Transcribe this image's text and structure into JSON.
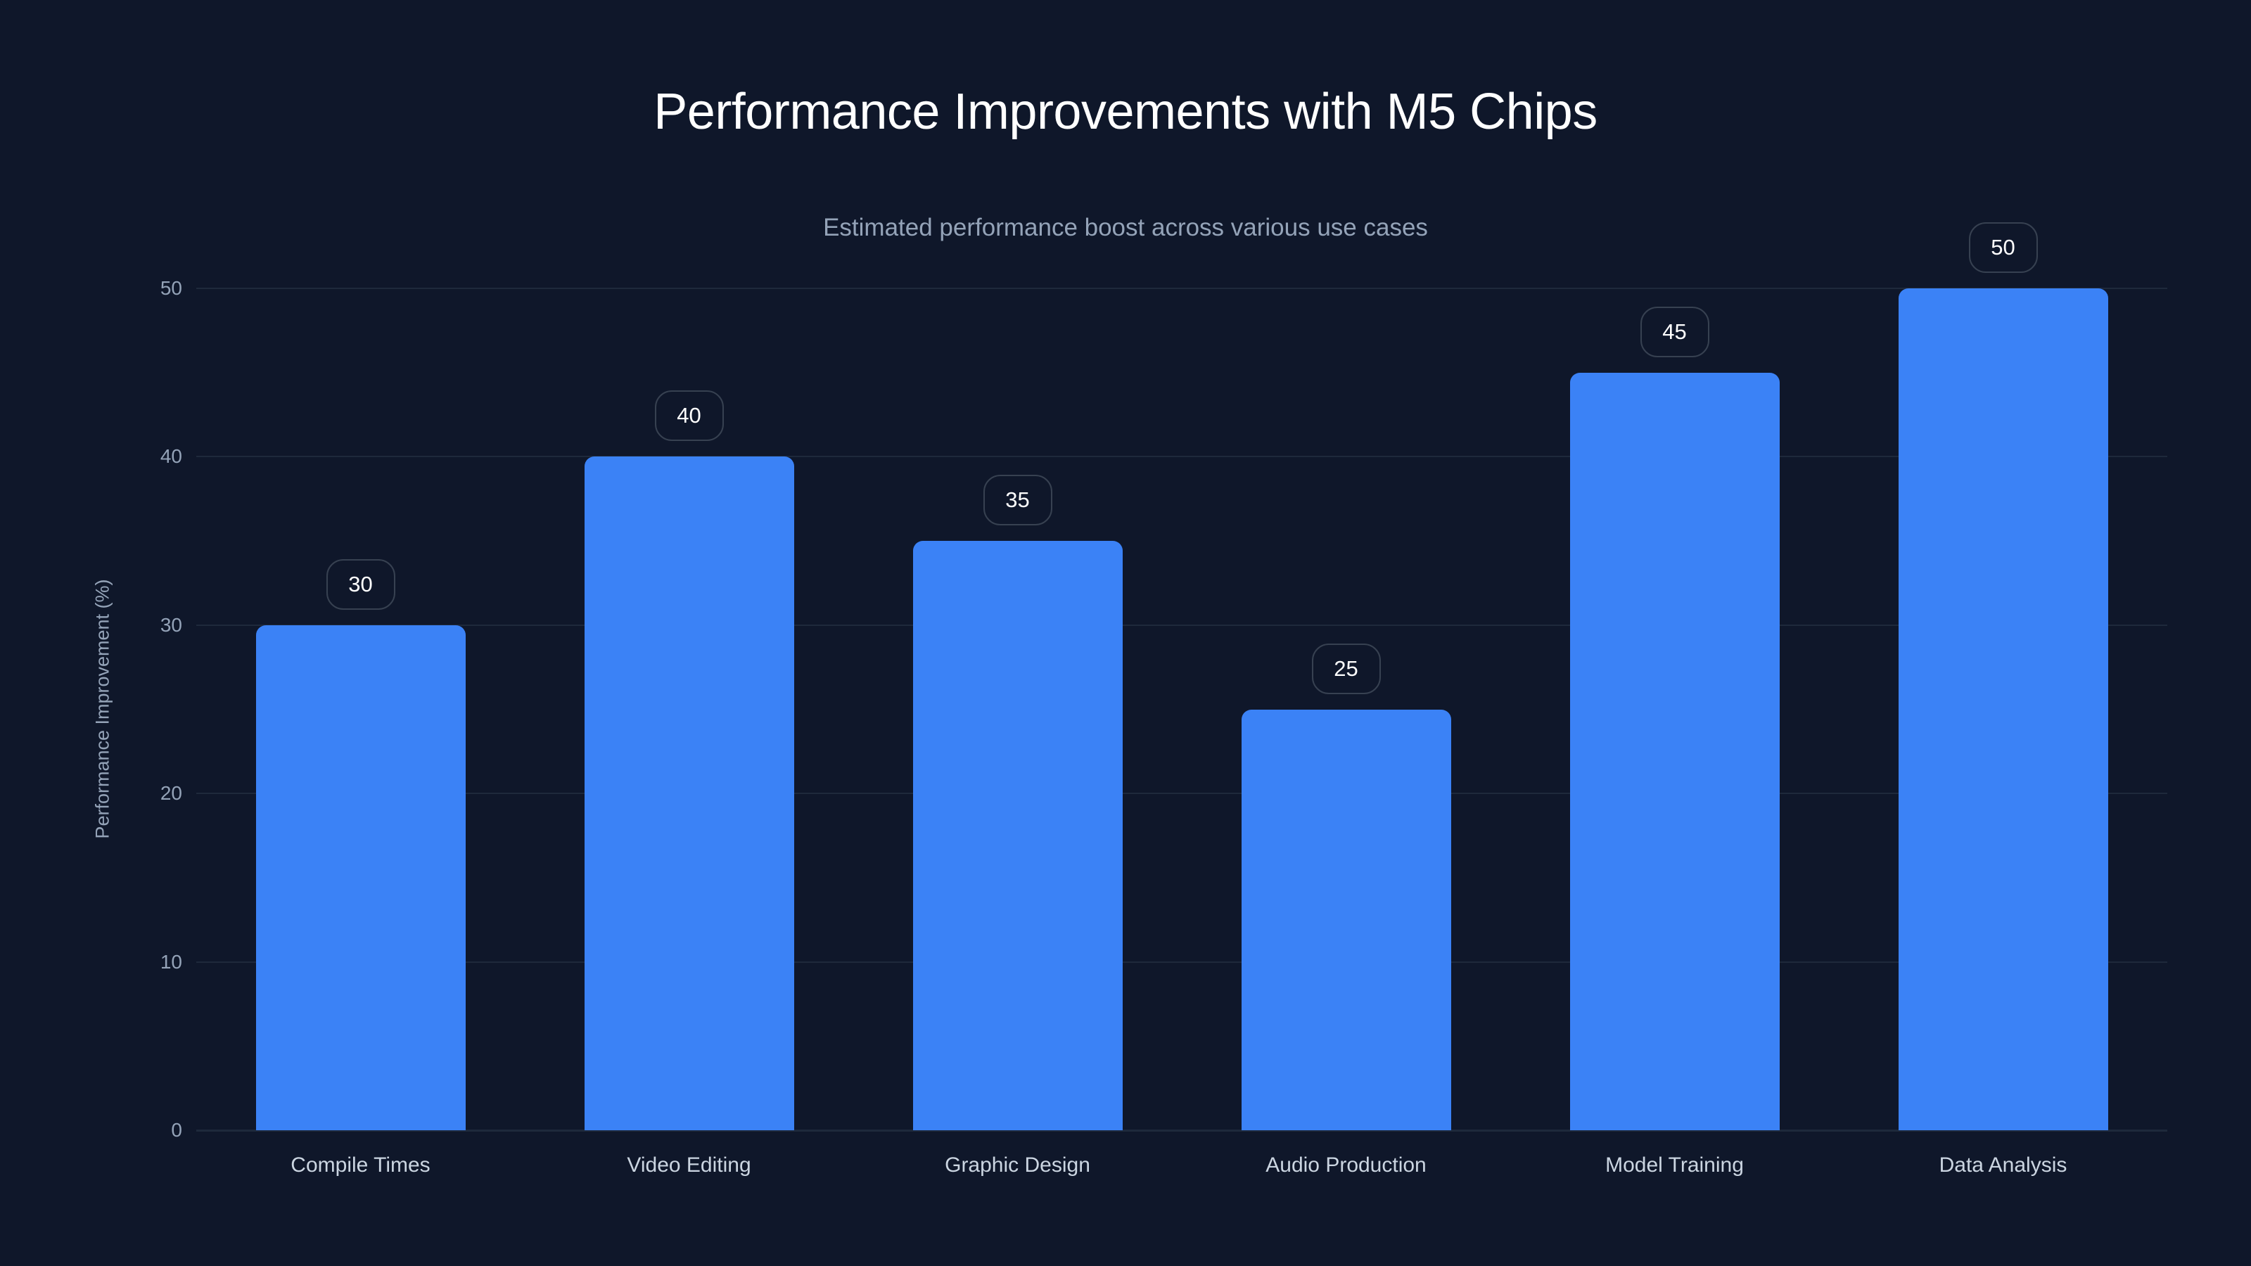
{
  "header": {
    "title": "Performance Improvements with M5 Chips",
    "subtitle": "Estimated performance boost across various use cases"
  },
  "colors": {
    "background": "#0f172a",
    "bar": "#3b82f6",
    "grid": "#1e293b",
    "label_pill_border": "#374151",
    "axis_text": "#94a3b8",
    "category_text": "#cbd5e1"
  },
  "chart_data": {
    "type": "bar",
    "title": "Performance Improvements with M5 Chips",
    "subtitle": "Estimated performance boost across various use cases",
    "xlabel": "",
    "ylabel": "Performance Improvement (%)",
    "categories": [
      "Compile Times",
      "Video Editing",
      "Graphic Design",
      "Audio Production",
      "Model Training",
      "Data Analysis"
    ],
    "values": [
      30,
      40,
      35,
      25,
      45,
      50
    ],
    "ylim": [
      0,
      50
    ],
    "yticks": [
      0,
      10,
      20,
      30,
      40,
      50
    ],
    "grid": true,
    "data_labels": true,
    "legend": null
  }
}
